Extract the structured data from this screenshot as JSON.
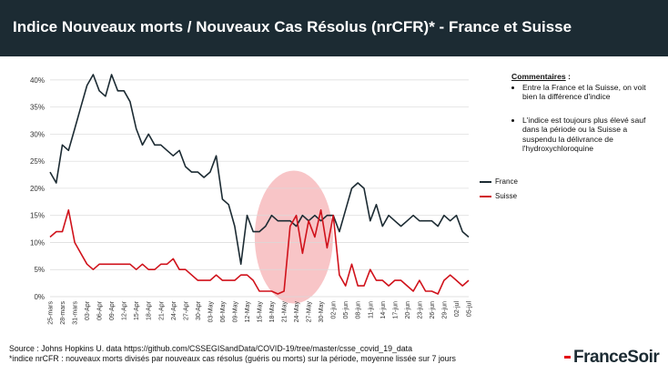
{
  "header": {
    "title": "Indice Nouveaux morts / Nouveaux Cas Résolus (nrCFR)* - France et Suisse",
    "background": "#1c2b33"
  },
  "comments": {
    "title": "Commentaires",
    "title_suffix": " :",
    "items": [
      "Entre la France et la Suisse, on voit bien la différence d'indice",
      "L'indice est toujours plus élevé sauf dans la période ou la Suisse a suspendu la délivrance de l'hydroxychloroquine"
    ]
  },
  "footer": {
    "source": "Source : Johns Hopkins U. data https://github.com/CSSEGISandData/COVID-19/tree/master/csse_covid_19_data",
    "note": "*indice nrCFR : nouveaux morts divisés par nouveaux cas résolus (guéris ou morts) sur la période, moyenne lissée sur 7 jours",
    "logo": "FranceSoir",
    "logo_accent": "#e30613"
  },
  "chart_data": {
    "type": "line",
    "categories": [
      "25-mars",
      "28-mars",
      "31-mars",
      "03-Apr",
      "06-Apr",
      "09-Apr",
      "12-Apr",
      "15-Apr",
      "18-Apr",
      "21-Apr",
      "24-Apr",
      "27-Apr",
      "30-Apr",
      "03-May",
      "06-May",
      "09-May",
      "12-May",
      "15-May",
      "18-May",
      "21-May",
      "24-May",
      "27-May",
      "30-May",
      "02-jun",
      "05-jun",
      "08-jun",
      "11-jun",
      "14-jun",
      "17-jun",
      "20-jun",
      "23-jun",
      "26-jun",
      "29-jun",
      "02-jul",
      "05-jul"
    ],
    "yticks": [
      "0%",
      "5%",
      "10%",
      "15%",
      "20%",
      "25%",
      "30%",
      "35%",
      "40%"
    ],
    "ylim": [
      0,
      42
    ],
    "grid": true,
    "legend_position": "right",
    "series": [
      {
        "name": "France",
        "color": "#1c2b33",
        "x": [
          0,
          0.5,
          1,
          1.5,
          2,
          2.5,
          3,
          3.5,
          4,
          4.5,
          5,
          5.5,
          6,
          6.5,
          7,
          7.5,
          8,
          8.5,
          9,
          9.5,
          10,
          10.5,
          11,
          11.5,
          12,
          12.5,
          13,
          13.5,
          14,
          14.5,
          15,
          15.5,
          16,
          16.5,
          17,
          17.5,
          18,
          18.5,
          19,
          19.5,
          20,
          20.5,
          21,
          21.5,
          22,
          22.5,
          23,
          23.5,
          24,
          24.5,
          25,
          25.5,
          26,
          26.5,
          27,
          27.5,
          28,
          28.5,
          29,
          29.5,
          30,
          30.5,
          31,
          31.5,
          32,
          32.5,
          33,
          33.5,
          34
        ],
        "values": [
          23,
          21,
          28,
          27,
          31,
          35,
          39,
          41,
          38,
          37,
          41,
          38,
          38,
          36,
          31,
          28,
          30,
          28,
          28,
          27,
          26,
          27,
          24,
          23,
          23,
          22,
          23,
          26,
          18,
          17,
          13,
          6,
          15,
          12,
          12,
          13,
          15,
          14,
          14,
          14,
          13,
          15,
          14,
          15,
          14,
          15,
          15,
          12,
          16,
          20,
          21,
          20,
          14,
          17,
          13,
          15,
          14,
          13,
          14,
          15,
          14,
          14,
          14,
          13,
          15,
          14,
          15,
          12,
          11
        ]
      },
      {
        "name": "Suisse",
        "color": "#d0121b",
        "x": [
          0,
          0.5,
          1,
          1.5,
          2,
          2.5,
          3,
          3.5,
          4,
          4.5,
          5,
          5.5,
          6,
          6.5,
          7,
          7.5,
          8,
          8.5,
          9,
          9.5,
          10,
          10.5,
          11,
          11.5,
          12,
          12.5,
          13,
          13.5,
          14,
          14.5,
          15,
          15.5,
          16,
          16.5,
          17,
          17.5,
          18,
          18.5,
          19,
          19.5,
          20,
          20.5,
          21,
          21.5,
          22,
          22.5,
          23,
          23.5,
          24,
          24.5,
          25,
          25.5,
          26,
          26.5,
          27,
          27.5,
          28,
          28.5,
          29,
          29.5,
          30,
          30.5,
          31,
          31.5,
          32,
          32.5,
          33,
          33.5,
          34
        ],
        "values": [
          11,
          12,
          12,
          16,
          10,
          8,
          6,
          5,
          6,
          6,
          6,
          6,
          6,
          6,
          5,
          6,
          5,
          5,
          6,
          6,
          7,
          5,
          5,
          4,
          3,
          3,
          3,
          4,
          3,
          3,
          3,
          4,
          4,
          3,
          1,
          1,
          1,
          0.5,
          1,
          13,
          15,
          8,
          14,
          11,
          16,
          9,
          15,
          4,
          2,
          6,
          2,
          2,
          5,
          3,
          3,
          2,
          3,
          3,
          2,
          1,
          3,
          1,
          1,
          0.5,
          3,
          4,
          3,
          2,
          3
        ]
      }
    ],
    "highlight": {
      "color": "#f4a6a9"
    }
  }
}
